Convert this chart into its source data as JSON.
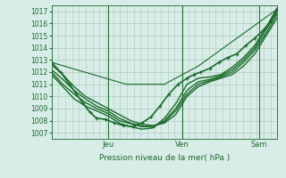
{
  "title": "",
  "xlabel": "Pression niveau de la mer( hPa )",
  "ylabel": "",
  "background_color": "#d8ece8",
  "grid_color": "#aaccbb",
  "line_color": "#1a6b2a",
  "ylim": [
    1006.5,
    1017.5
  ],
  "yticks": [
    1007,
    1008,
    1009,
    1010,
    1011,
    1012,
    1013,
    1014,
    1015,
    1016,
    1017
  ],
  "day_labels": [
    "Jeu",
    "Ven",
    "Sam"
  ],
  "day_positions": [
    0.25,
    0.58,
    0.92
  ],
  "lines": [
    {
      "x": [
        0.0,
        0.04,
        0.08,
        0.11,
        0.14,
        0.17,
        0.2,
        0.24,
        0.28,
        0.32,
        0.36,
        0.4,
        0.44,
        0.48,
        0.52,
        0.56,
        0.6,
        0.63,
        0.66,
        0.7,
        0.74,
        0.78,
        0.82,
        0.86,
        0.9,
        0.94,
        0.97,
        1.0
      ],
      "y": [
        1012.8,
        1012.0,
        1011.0,
        1010.2,
        1009.4,
        1008.7,
        1008.2,
        1008.1,
        1007.8,
        1007.6,
        1007.5,
        1007.8,
        1008.3,
        1009.2,
        1010.2,
        1011.0,
        1011.5,
        1011.8,
        1012.0,
        1012.3,
        1012.8,
        1013.2,
        1013.5,
        1014.2,
        1014.8,
        1015.5,
        1016.2,
        1017.2
      ],
      "marker": true,
      "linewidth": 1.2,
      "markersize": 3.0
    },
    {
      "x": [
        0.0,
        0.05,
        0.1,
        0.15,
        0.2,
        0.25,
        0.3,
        0.35,
        0.4,
        0.45,
        0.5,
        0.55,
        0.6,
        0.65,
        0.7,
        0.75,
        0.8,
        0.85,
        0.9,
        0.95,
        1.0
      ],
      "y": [
        1012.6,
        1011.8,
        1010.8,
        1010.0,
        1009.5,
        1009.0,
        1008.5,
        1008.0,
        1007.7,
        1007.6,
        1007.8,
        1008.5,
        1010.0,
        1010.8,
        1011.2,
        1011.5,
        1011.8,
        1012.5,
        1013.5,
        1015.0,
        1016.5
      ],
      "marker": false,
      "linewidth": 1.0
    },
    {
      "x": [
        0.0,
        0.05,
        0.1,
        0.15,
        0.2,
        0.25,
        0.3,
        0.35,
        0.4,
        0.45,
        0.5,
        0.55,
        0.6,
        0.65,
        0.7,
        0.75,
        0.8,
        0.85,
        0.9,
        0.95,
        1.0
      ],
      "y": [
        1012.2,
        1011.4,
        1010.5,
        1009.8,
        1009.2,
        1008.8,
        1008.2,
        1007.8,
        1007.55,
        1007.5,
        1007.9,
        1008.8,
        1010.2,
        1011.0,
        1011.3,
        1011.6,
        1012.0,
        1012.8,
        1013.8,
        1015.2,
        1016.8
      ],
      "marker": false,
      "linewidth": 1.0
    },
    {
      "x": [
        0.0,
        0.05,
        0.1,
        0.15,
        0.2,
        0.25,
        0.3,
        0.35,
        0.4,
        0.45,
        0.5,
        0.55,
        0.6,
        0.65,
        0.7,
        0.75,
        0.8,
        0.85,
        0.9,
        0.95,
        1.0
      ],
      "y": [
        1012.0,
        1011.0,
        1010.2,
        1009.5,
        1009.0,
        1008.6,
        1008.0,
        1007.75,
        1007.5,
        1007.5,
        1008.0,
        1009.0,
        1010.5,
        1011.2,
        1011.4,
        1011.7,
        1012.2,
        1013.0,
        1014.0,
        1015.5,
        1017.0
      ],
      "marker": false,
      "linewidth": 1.0
    },
    {
      "x": [
        0.0,
        0.05,
        0.1,
        0.15,
        0.2,
        0.25,
        0.3,
        0.35,
        0.4,
        0.45,
        0.5,
        0.55,
        0.6,
        0.65,
        0.7,
        0.75,
        0.8,
        0.85,
        0.9,
        0.95,
        1.0
      ],
      "y": [
        1011.8,
        1010.8,
        1009.8,
        1009.2,
        1008.8,
        1008.4,
        1007.8,
        1007.5,
        1007.3,
        1007.4,
        1008.2,
        1009.4,
        1011.0,
        1011.5,
        1011.6,
        1011.8,
        1012.4,
        1013.2,
        1014.2,
        1015.7,
        1017.3
      ],
      "marker": false,
      "linewidth": 1.0
    },
    {
      "x": [
        0.0,
        0.33,
        0.5,
        0.65,
        1.0
      ],
      "y": [
        1012.8,
        1011.0,
        1011.0,
        1012.5,
        1017.2
      ],
      "marker": false,
      "linewidth": 0.8
    }
  ]
}
